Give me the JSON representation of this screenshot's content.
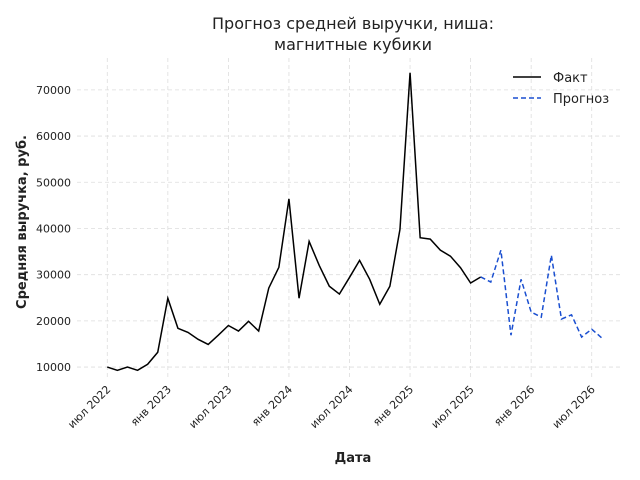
{
  "chart_data": {
    "type": "line",
    "title": [
      "Прогноз средней выручки, ниша:",
      "магнитные кубики"
    ],
    "x_label": "Дата",
    "y_label": "Средняя выручка, руб.",
    "x": [
      "2022-07",
      "2022-08",
      "2022-09",
      "2022-10",
      "2022-11",
      "2022-12",
      "2023-01",
      "2023-02",
      "2023-03",
      "2023-04",
      "2023-05",
      "2023-06",
      "2023-07",
      "2023-08",
      "2023-09",
      "2023-10",
      "2023-11",
      "2023-12",
      "2024-01",
      "2024-02",
      "2024-03",
      "2024-04",
      "2024-05",
      "2024-06",
      "2024-07",
      "2024-08",
      "2024-09",
      "2024-10",
      "2024-11",
      "2024-12",
      "2025-01",
      "2025-02",
      "2025-03",
      "2025-04",
      "2025-05",
      "2025-06",
      "2025-07",
      "2025-08",
      "2025-09",
      "2025-10",
      "2025-11",
      "2025-12",
      "2026-01",
      "2026-02",
      "2026-03",
      "2026-04",
      "2026-05",
      "2026-06",
      "2026-07",
      "2026-08"
    ],
    "series": [
      {
        "name": "Факт",
        "color": "#000000",
        "dash": false,
        "values": [
          10000,
          9300,
          10000,
          9300,
          10600,
          13200,
          24900,
          18400,
          17500,
          16000,
          14900,
          16900,
          19000,
          17800,
          19900,
          17800,
          27100,
          31600,
          46400,
          24900,
          37200,
          32000,
          27500,
          25800,
          29400,
          33100,
          29000,
          23600,
          27500,
          39800,
          73700,
          38000,
          37700,
          35300,
          34000,
          31500,
          28200,
          29500,
          null,
          null,
          null,
          null,
          null,
          null,
          null,
          null,
          null,
          null,
          null,
          null
        ]
      },
      {
        "name": "Прогноз",
        "color": "#1a4fd0",
        "dash": true,
        "values": [
          null,
          null,
          null,
          null,
          null,
          null,
          null,
          null,
          null,
          null,
          null,
          null,
          null,
          null,
          null,
          null,
          null,
          null,
          null,
          null,
          null,
          null,
          null,
          null,
          null,
          null,
          null,
          null,
          null,
          null,
          null,
          null,
          null,
          null,
          null,
          null,
          null,
          29500,
          28400,
          35300,
          16900,
          29000,
          21900,
          20800,
          34200,
          20400,
          21300,
          16500,
          18200,
          16300
        ]
      }
    ],
    "xlim": [
      "2022-04",
      "2026-10"
    ],
    "xticks": [
      {
        "value": "2022-07",
        "label": "июл 2022"
      },
      {
        "value": "2023-01",
        "label": "янв 2023"
      },
      {
        "value": "2023-07",
        "label": "июл 2023"
      },
      {
        "value": "2024-01",
        "label": "янв 2024"
      },
      {
        "value": "2024-07",
        "label": "июл 2024"
      },
      {
        "value": "2025-01",
        "label": "янв 2025"
      },
      {
        "value": "2025-07",
        "label": "июл 2025"
      },
      {
        "value": "2026-01",
        "label": "янв 2026"
      },
      {
        "value": "2026-07",
        "label": "июл 2026"
      }
    ],
    "ylim": [
      7200,
      76900
    ],
    "yticks": [
      10000,
      20000,
      30000,
      40000,
      50000,
      60000,
      70000
    ],
    "grid": true,
    "legend": "upper right"
  }
}
